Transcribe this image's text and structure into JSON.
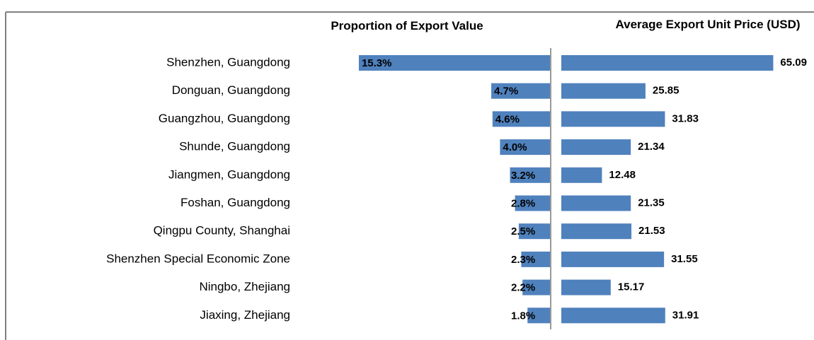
{
  "chart_data": {
    "type": "bar",
    "categories": [
      "Shenzhen,  Guangdong",
      "Donguan, Guangdong",
      "Guangzhou, Guangdong",
      "Shunde, Guangdong",
      "Jiangmen, Guangdong",
      "Foshan, Guangdong",
      "Qingpu County, Shanghai",
      "Shenzhen  Special Economic Zone",
      "Ningbo, Zhejiang",
      "Jiaxing, Zhejiang"
    ],
    "series": [
      {
        "name": "Proportion of Export Value",
        "color": "#4f81bd",
        "values": [
          15.3,
          4.7,
          4.6,
          4.0,
          3.2,
          2.8,
          2.5,
          2.3,
          2.2,
          1.8
        ],
        "value_labels": [
          "15.3%",
          "4.7%",
          "4.6%",
          "4.0%",
          "3.2%",
          "2.8%",
          "2.5%",
          "2.3%",
          "2.2%",
          "1.8%"
        ]
      },
      {
        "name": "Average Export Unit Price (USD)",
        "color": "#4f81bd",
        "values": [
          65.09,
          25.85,
          31.83,
          21.34,
          12.48,
          21.35,
          21.53,
          31.55,
          15.17,
          31.91
        ]
      }
    ]
  }
}
